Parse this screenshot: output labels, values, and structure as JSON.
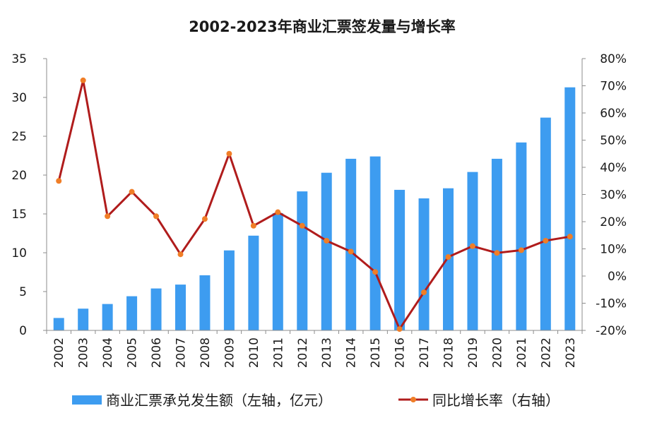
{
  "chart_data": {
    "type": "bar",
    "title": "2002-2023年商业汇票签发量与增长率",
    "categories": [
      "2002",
      "2003",
      "2004",
      "2005",
      "2006",
      "2007",
      "2008",
      "2009",
      "2010",
      "2011",
      "2012",
      "2013",
      "2014",
      "2015",
      "2016",
      "2017",
      "2018",
      "2019",
      "2020",
      "2021",
      "2022",
      "2023"
    ],
    "series": [
      {
        "name": "商业汇票承兑发生额（左轴，亿元）",
        "type": "bar",
        "axis": "left",
        "color": "#3d9cf0",
        "values": [
          1.6,
          2.8,
          3.4,
          4.4,
          5.4,
          5.9,
          7.1,
          10.3,
          12.2,
          15.1,
          17.9,
          20.3,
          22.1,
          22.4,
          18.1,
          17.0,
          18.3,
          20.4,
          22.1,
          24.2,
          27.4,
          31.3
        ]
      },
      {
        "name": "同比增长率（右轴）",
        "type": "line",
        "axis": "right",
        "color": "#b01c1c",
        "marker_color": "#f07e27",
        "values": [
          35,
          72,
          22,
          31,
          22,
          8,
          21,
          45,
          18.5,
          23.5,
          18.5,
          13,
          9,
          1.5,
          -19.5,
          -6,
          7,
          11,
          8.5,
          9.5,
          13,
          14.5
        ]
      }
    ],
    "y_left": {
      "min": 0,
      "max": 35,
      "ticks": [
        "0",
        "5",
        "10",
        "15",
        "20",
        "25",
        "30",
        "35"
      ]
    },
    "y_right": {
      "min": -20,
      "max": 80,
      "ticks": [
        "-20%",
        "-10%",
        "0%",
        "10%",
        "20%",
        "30%",
        "40%",
        "50%",
        "60%",
        "70%",
        "80%"
      ]
    },
    "grid": false,
    "legend_position": "bottom"
  }
}
